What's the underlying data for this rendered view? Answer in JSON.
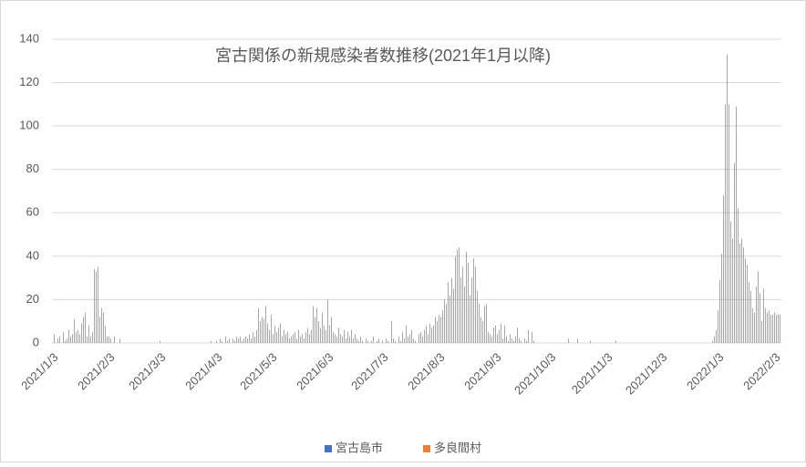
{
  "chart_data": {
    "type": "bar",
    "title": "宮古関係の新規感染者数推移(2021年1月以降)",
    "categories": [
      "2021/1/3",
      null,
      null,
      null,
      null,
      null,
      null,
      null,
      null,
      null,
      null,
      null,
      null,
      null,
      null,
      null,
      null,
      null,
      null,
      null,
      null,
      null,
      null,
      null,
      null,
      null,
      null,
      null,
      null,
      null,
      null,
      "2021/2/3",
      null,
      null,
      null,
      null,
      null,
      null,
      null,
      null,
      null,
      null,
      null,
      null,
      null,
      null,
      null,
      null,
      null,
      null,
      null,
      null,
      null,
      null,
      null,
      null,
      null,
      null,
      null,
      "2021/3/3",
      null,
      null,
      null,
      null,
      null,
      null,
      null,
      null,
      null,
      null,
      null,
      null,
      null,
      null,
      null,
      null,
      null,
      null,
      null,
      null,
      null,
      null,
      null,
      null,
      null,
      null,
      null,
      null,
      null,
      null,
      "2021/4/3",
      null,
      null,
      null,
      null,
      null,
      null,
      null,
      null,
      null,
      null,
      null,
      null,
      null,
      null,
      null,
      null,
      null,
      null,
      null,
      null,
      null,
      null,
      null,
      null,
      null,
      null,
      null,
      null,
      null,
      "2021/5/3",
      null,
      null,
      null,
      null,
      null,
      null,
      null,
      null,
      null,
      null,
      null,
      null,
      null,
      null,
      null,
      null,
      null,
      null,
      null,
      null,
      null,
      null,
      null,
      null,
      null,
      null,
      null,
      null,
      null,
      null,
      "2021/6/3",
      null,
      null,
      null,
      null,
      null,
      null,
      null,
      null,
      null,
      null,
      null,
      null,
      null,
      null,
      null,
      null,
      null,
      null,
      null,
      null,
      null,
      null,
      null,
      null,
      null,
      null,
      null,
      null,
      null,
      "2021/7/3",
      null,
      null,
      null,
      null,
      null,
      null,
      null,
      null,
      null,
      null,
      null,
      null,
      null,
      null,
      null,
      null,
      null,
      null,
      null,
      null,
      null,
      null,
      null,
      null,
      null,
      null,
      null,
      null,
      null,
      null,
      "2021/8/3",
      null,
      null,
      null,
      null,
      null,
      null,
      null,
      null,
      null,
      null,
      null,
      null,
      null,
      null,
      null,
      null,
      null,
      null,
      null,
      null,
      null,
      null,
      null,
      null,
      null,
      null,
      null,
      null,
      null,
      null,
      "2021/9/3",
      null,
      null,
      null,
      null,
      null,
      null,
      null,
      null,
      null,
      null,
      null,
      null,
      null,
      null,
      null,
      null,
      null,
      null,
      null,
      null,
      null,
      null,
      null,
      null,
      null,
      null,
      null,
      null,
      null,
      "2021/10/3",
      null,
      null,
      null,
      null,
      null,
      null,
      null,
      null,
      null,
      null,
      null,
      null,
      null,
      null,
      null,
      null,
      null,
      null,
      null,
      null,
      null,
      null,
      null,
      null,
      null,
      null,
      null,
      null,
      null,
      null,
      "2021/11/3",
      null,
      null,
      null,
      null,
      null,
      null,
      null,
      null,
      null,
      null,
      null,
      null,
      null,
      null,
      null,
      null,
      null,
      null,
      null,
      null,
      null,
      null,
      null,
      null,
      null,
      null,
      null,
      null,
      null,
      "2021/12/3",
      null,
      null,
      null,
      null,
      null,
      null,
      null,
      null,
      null,
      null,
      null,
      null,
      null,
      null,
      null,
      null,
      null,
      null,
      null,
      null,
      null,
      null,
      null,
      null,
      null,
      null,
      null,
      null,
      null,
      null,
      "2022/1/3",
      null,
      null,
      null,
      null,
      null,
      null,
      null,
      null,
      null,
      null,
      null,
      null,
      null,
      null,
      null,
      null,
      null,
      null,
      null,
      null,
      null,
      null,
      null,
      null,
      null,
      null,
      null,
      null,
      null,
      null,
      "2022/2/3",
      null,
      null,
      null
    ],
    "series": [
      {
        "name": "宮古島市",
        "color": "#4472c4",
        "values": [
          0,
          4,
          0,
          2,
          3,
          0,
          5,
          1,
          2,
          6,
          3,
          4,
          11,
          5,
          6,
          4,
          9,
          12,
          14,
          3,
          8,
          3,
          5,
          34,
          33,
          35,
          12,
          16,
          14,
          8,
          3,
          3,
          2,
          0,
          3,
          0,
          0,
          2,
          0,
          0,
          0,
          0,
          0,
          0,
          0,
          0,
          0,
          0,
          0,
          0,
          0,
          0,
          0,
          0,
          0,
          0,
          0,
          0,
          0,
          1,
          0,
          0,
          0,
          0,
          0,
          0,
          0,
          0,
          0,
          0,
          0,
          0,
          0,
          0,
          0,
          0,
          0,
          0,
          0,
          0,
          0,
          0,
          0,
          0,
          0,
          0,
          0,
          1,
          0,
          0,
          1,
          0,
          2,
          1,
          0,
          3,
          1,
          2,
          0,
          2,
          1,
          3,
          2,
          3,
          1,
          2,
          3,
          2,
          4,
          2,
          5,
          3,
          6,
          16,
          10,
          12,
          11,
          17,
          9,
          6,
          13,
          4,
          8,
          5,
          7,
          9,
          3,
          6,
          4,
          5,
          2,
          3,
          4,
          5,
          2,
          6,
          3,
          4,
          2,
          5,
          7,
          4,
          6,
          17,
          12,
          16,
          10,
          7,
          14,
          8,
          6,
          20,
          8,
          12,
          5,
          4,
          3,
          7,
          4,
          3,
          6,
          2,
          5,
          3,
          6,
          2,
          4,
          2,
          1,
          3,
          1,
          0,
          2,
          1,
          0,
          1,
          3,
          0,
          1,
          2,
          0,
          1,
          0,
          2,
          1,
          0,
          10,
          2,
          1,
          0,
          3,
          1,
          5,
          2,
          8,
          3,
          4,
          6,
          2,
          1,
          0,
          4,
          5,
          3,
          6,
          8,
          4,
          9,
          7,
          8,
          12,
          10,
          13,
          12,
          15,
          20,
          18,
          28,
          22,
          30,
          25,
          40,
          43,
          44,
          30,
          35,
          26,
          42,
          37,
          22,
          30,
          39,
          35,
          24,
          18,
          12,
          10,
          17,
          18,
          5,
          4,
          3,
          7,
          8,
          4,
          6,
          9,
          2,
          8,
          3,
          1,
          4,
          2,
          1,
          3,
          7,
          2,
          1,
          0,
          2,
          1,
          6,
          0,
          5,
          1,
          0,
          0,
          0,
          0,
          0,
          0,
          0,
          0,
          0,
          0,
          0,
          0,
          0,
          0,
          0,
          0,
          0,
          0,
          2,
          0,
          0,
          0,
          0,
          2,
          0,
          0,
          0,
          0,
          0,
          0,
          1,
          0,
          0,
          0,
          0,
          0,
          0,
          0,
          0,
          0,
          0,
          0,
          0,
          0,
          1,
          0,
          0,
          0,
          0,
          0,
          0,
          0,
          0,
          0,
          0,
          0,
          0,
          0,
          0,
          0,
          0,
          0,
          0,
          0,
          0,
          0,
          0,
          0,
          0,
          0,
          0,
          0,
          0,
          0,
          0,
          0,
          0,
          0,
          0,
          0,
          0,
          0,
          0,
          0,
          0,
          0,
          0,
          0,
          0,
          0,
          0,
          0,
          0,
          0,
          0,
          0,
          0,
          1,
          3,
          6,
          15,
          29,
          41,
          68,
          110,
          133,
          110,
          56,
          48,
          83,
          109,
          62,
          46,
          48,
          44,
          39,
          36,
          28,
          24,
          16,
          14,
          26,
          33,
          23,
          10,
          25,
          16,
          14,
          15,
          13,
          13,
          14,
          13,
          13,
          13
        ]
      },
      {
        "name": "多良間村",
        "color": "#ed7d31",
        "values": [
          0,
          0,
          0,
          0,
          0,
          0,
          0,
          0,
          0,
          0,
          0,
          0,
          0,
          0,
          0,
          0,
          0,
          0,
          0,
          0,
          0,
          0,
          0,
          0,
          0,
          0,
          0,
          0,
          0,
          0,
          0,
          0,
          0,
          0,
          0,
          0,
          0,
          0,
          0,
          0,
          0,
          0,
          0,
          0,
          0,
          0,
          0,
          0,
          0,
          0,
          0,
          0,
          0,
          0,
          0,
          0,
          0,
          0,
          0,
          0,
          0,
          0,
          0,
          0,
          0,
          0,
          0,
          0,
          0,
          0,
          0,
          0,
          0,
          0,
          0,
          0,
          0,
          0,
          0,
          0,
          0,
          0,
          0,
          0,
          0,
          0,
          0,
          0,
          0,
          0,
          0,
          0,
          0,
          0,
          0,
          0,
          0,
          0,
          0,
          0,
          0,
          0,
          0,
          0,
          0,
          0,
          0,
          0,
          0,
          0,
          0,
          0,
          0,
          0,
          0,
          0,
          0,
          0,
          0,
          0,
          0,
          0,
          0,
          0,
          0,
          0,
          0,
          0,
          0,
          0,
          0,
          0,
          0,
          0,
          0,
          0,
          0,
          0,
          0,
          0,
          0,
          0,
          0,
          0,
          0,
          0,
          0,
          0,
          0,
          0,
          0,
          0,
          0,
          0,
          0,
          0,
          0,
          0,
          0,
          0,
          0,
          0,
          0,
          0,
          0,
          0,
          0,
          0,
          0,
          0,
          0,
          0,
          0,
          0,
          0,
          0,
          0,
          0,
          0,
          0,
          0,
          0,
          0,
          0,
          0,
          0,
          0,
          0,
          0,
          0,
          0,
          0,
          0,
          0,
          0,
          0,
          0,
          0,
          0,
          0,
          0,
          0,
          0,
          0,
          0,
          0,
          0,
          0,
          0,
          0,
          0,
          0,
          0,
          0,
          0,
          0,
          0,
          0,
          0,
          0,
          0,
          0,
          0,
          0,
          0,
          0,
          0,
          0,
          0,
          0,
          0,
          0,
          0,
          0,
          0,
          0,
          0,
          0,
          0,
          0,
          0,
          0,
          0,
          0,
          0,
          0,
          0,
          0,
          0,
          0,
          0,
          0,
          0,
          0,
          0,
          0,
          0,
          0,
          0,
          0,
          0,
          0,
          0,
          0,
          0,
          0,
          0,
          0,
          0,
          0,
          0,
          0,
          0,
          0,
          0,
          0,
          0,
          0,
          0,
          0,
          0,
          0,
          0,
          0,
          0,
          0,
          0,
          0,
          0,
          0,
          0,
          0,
          0,
          0,
          0,
          0,
          0,
          0,
          0,
          0,
          0,
          0,
          0,
          0,
          0,
          0,
          0,
          0,
          0,
          0,
          0,
          0,
          0,
          0,
          0,
          0,
          0,
          0,
          0,
          0,
          0,
          0,
          0,
          0,
          0,
          0,
          0,
          0,
          0,
          0,
          0,
          0,
          0,
          0,
          0,
          0,
          0,
          0,
          0,
          0,
          0,
          0,
          0,
          0,
          0,
          0,
          0,
          0,
          0,
          0,
          0,
          0,
          0,
          0,
          0,
          0,
          0,
          0,
          0,
          0,
          0,
          0,
          0,
          0,
          0,
          0,
          0,
          0,
          0,
          0,
          0,
          0,
          0,
          0,
          0,
          0,
          0,
          0,
          0,
          0,
          0,
          0,
          0,
          0,
          0,
          0,
          0,
          0,
          0,
          0,
          0,
          0,
          0,
          0,
          0,
          0,
          0,
          0,
          0,
          0
        ]
      }
    ],
    "ylim": [
      0,
      140
    ],
    "yticks": [
      0,
      20,
      40,
      60,
      80,
      100,
      120,
      140
    ],
    "grid": true,
    "legend": "bottom"
  }
}
